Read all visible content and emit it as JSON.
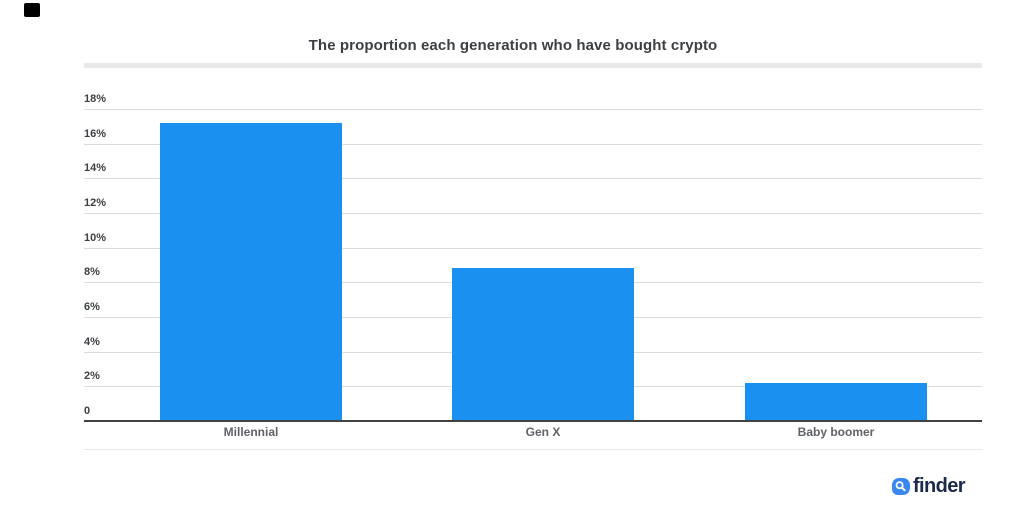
{
  "chart_data": {
    "type": "bar",
    "title": "The proportion each generation who have bought crypto",
    "categories": [
      "Millennial",
      "Gen X",
      "Baby boomer"
    ],
    "values": [
      17.2,
      8.8,
      2.2
    ],
    "unit": "%",
    "xlabel": "",
    "ylabel": "",
    "ylim": [
      0,
      18
    ],
    "yticks": [
      {
        "value": 18,
        "label": "18%"
      },
      {
        "value": 16,
        "label": "16%"
      },
      {
        "value": 14,
        "label": "14%"
      },
      {
        "value": 12,
        "label": "12%"
      },
      {
        "value": 10,
        "label": "10%"
      },
      {
        "value": 8,
        "label": "8%"
      },
      {
        "value": 6,
        "label": "6%"
      },
      {
        "value": 4,
        "label": "4%"
      },
      {
        "value": 2,
        "label": "2%"
      },
      {
        "value": 0,
        "label": "0"
      }
    ],
    "grid": true,
    "legend_position": "none",
    "bar_color": "#1a91f0"
  },
  "branding": {
    "logo_text": "finder",
    "logo_icon": "magnifier-icon",
    "logo_icon_color": "#3b87f1",
    "logo_text_color": "#1c2b4c"
  }
}
